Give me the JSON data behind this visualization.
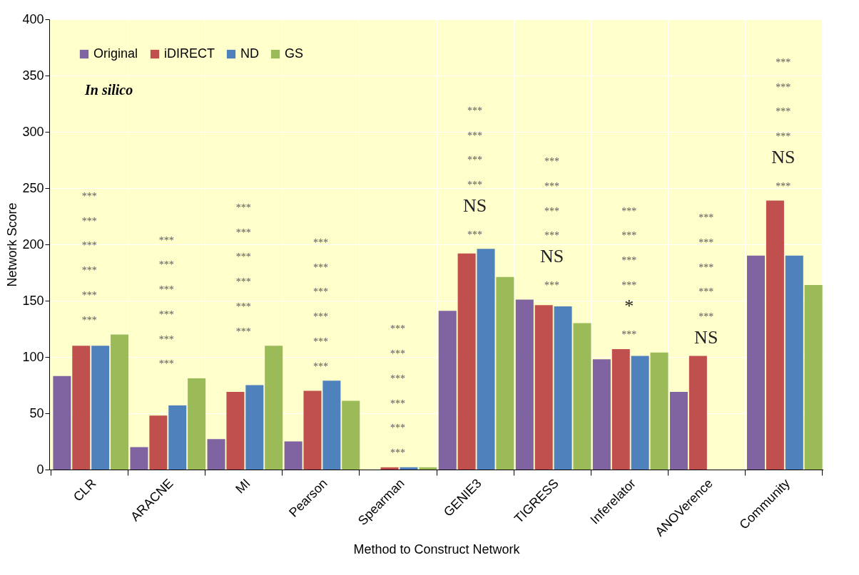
{
  "chart_data": {
    "type": "bar",
    "xlabel": "Method to Construct Network",
    "ylabel": "Network Score",
    "categories": [
      "CLR",
      "ARACNE",
      "MI",
      "Pearson",
      "Spearman",
      "GENIE3",
      "TIGRESS",
      "Inferelator",
      "ANOVerence",
      "Community"
    ],
    "series": [
      {
        "name": "Original",
        "color": "#8064a2",
        "values": [
          83,
          20,
          27,
          25,
          0,
          141,
          151,
          98,
          69,
          190
        ]
      },
      {
        "name": "iDIRECT",
        "color": "#c0504d",
        "values": [
          110,
          48,
          69,
          70,
          2,
          192,
          146,
          107,
          101,
          239
        ]
      },
      {
        "name": "ND",
        "color": "#4f81bd",
        "values": [
          110,
          57,
          75,
          79,
          2,
          196,
          145,
          101,
          0,
          190
        ]
      },
      {
        "name": "GS",
        "color": "#9bbb59",
        "values": [
          120,
          81,
          110,
          61,
          2,
          171,
          130,
          104,
          0,
          164
        ]
      }
    ],
    "ylim": [
      0,
      400
    ],
    "yticks": [
      0,
      50,
      100,
      150,
      200,
      250,
      300,
      350,
      400
    ],
    "grid": true,
    "legend": "top left",
    "annotations": [
      "In silico",
      "***",
      "***",
      "***",
      "***",
      "***",
      "***",
      "***",
      "***",
      "***",
      "***",
      "***",
      "***",
      "***",
      "***",
      "***",
      "***",
      "***",
      "***",
      "***",
      "***",
      "***",
      "***",
      "***",
      "***",
      "***",
      "***",
      "***",
      "***",
      "***",
      "***",
      "***",
      "NS",
      "***",
      "***",
      "***",
      "***",
      "***",
      "NS",
      "***",
      "***",
      "***",
      "***",
      "***",
      "*",
      "***",
      "***",
      "***",
      "***",
      "NS",
      "***",
      "***",
      "***",
      "***",
      "***",
      "***",
      "NS",
      "***",
      "***",
      "***",
      "***"
    ]
  }
}
